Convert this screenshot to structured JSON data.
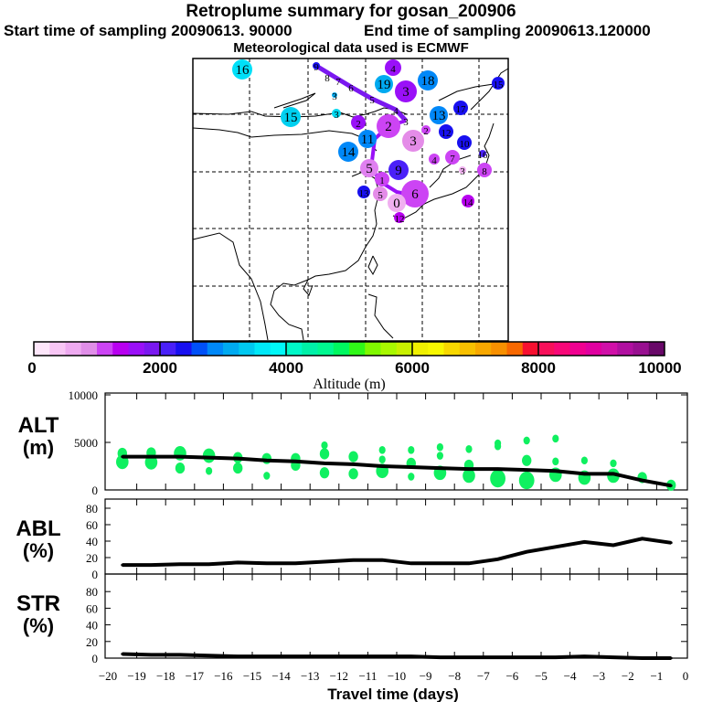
{
  "header": {
    "title": "Retroplume summary for gosan_200906",
    "start_time": "Start time of sampling 20090613. 90000",
    "end_time": "End time of sampling 20090613.120000",
    "met_data": "Meteorological data used is ECMWF"
  },
  "map": {
    "markers": [
      {
        "label": "16",
        "color": "#00e0f8"
      },
      {
        "label": "4",
        "color": "#9a10f8"
      },
      {
        "label": "19",
        "color": "#00aaf0"
      },
      {
        "label": "3",
        "color": "#9a10f8"
      },
      {
        "label": "18",
        "color": "#0088f8"
      },
      {
        "label": "15",
        "color": "#1810f0"
      },
      {
        "label": "15",
        "color": "#00d0f0"
      },
      {
        "label": "3",
        "color": "#00d8f0"
      },
      {
        "label": "13",
        "color": "#0088f8"
      },
      {
        "label": "17",
        "color": "#1810f0"
      },
      {
        "label": "2",
        "color": "#9a10f8"
      },
      {
        "label": "2",
        "color": "#cc44f4"
      },
      {
        "label": "11",
        "color": "#0088f8"
      },
      {
        "label": "3",
        "color": "#e48ce8"
      },
      {
        "label": "2",
        "color": "#cc44f4"
      },
      {
        "label": "12",
        "color": "#1810f0"
      },
      {
        "label": "10",
        "color": "#1810f0"
      },
      {
        "label": "14",
        "color": "#0088f8"
      },
      {
        "label": "4",
        "color": "#cc44f4"
      },
      {
        "label": "7",
        "color": "#cc44f4"
      },
      {
        "label": "16",
        "color": "#4a20f8"
      },
      {
        "label": "3",
        "color": "#f0b0f0"
      },
      {
        "label": "8",
        "color": "#cc44f4"
      },
      {
        "label": "5",
        "color": "#e080f0"
      },
      {
        "label": "1",
        "color": "#cc44f4"
      },
      {
        "label": "9",
        "color": "#4a20f8"
      },
      {
        "label": "13",
        "color": "#1810f0"
      },
      {
        "label": "5",
        "color": "#e48ce8"
      },
      {
        "label": "6",
        "color": "#cc44f4"
      },
      {
        "label": "0",
        "color": "#f0b0f0"
      },
      {
        "label": "12",
        "color": "#b800f0"
      },
      {
        "label": "14",
        "color": "#b800f0"
      },
      {
        "label": "9",
        "color": "#1810f0"
      },
      {
        "label": "8",
        "color": "none"
      },
      {
        "label": "7",
        "color": "none"
      },
      {
        "label": "6",
        "color": "none"
      },
      {
        "label": "3",
        "color": "#00aaf0"
      },
      {
        "label": "5",
        "color": "none"
      },
      {
        "label": "4",
        "color": "none"
      },
      {
        "label": "3",
        "color": "none"
      }
    ]
  },
  "colorbar": {
    "label": "Altitude (m)",
    "ticks": [
      "0",
      "2000",
      "4000",
      "6000",
      "8000",
      "10000"
    ],
    "colors": [
      "#fde6fa",
      "#f8c6f5",
      "#eeaaf0",
      "#e08ee8",
      "#cc44f4",
      "#b800f0",
      "#9a10f8",
      "#7a18f0",
      "#4a20f8",
      "#1810f0",
      "#0050f8",
      "#0088f8",
      "#00aaf0",
      "#00c8f0",
      "#00e8f8",
      "#00f8f8",
      "#00f8c8",
      "#00f0a8",
      "#00f890",
      "#00f860",
      "#30f818",
      "#80f800",
      "#a8f800",
      "#c8f000",
      "#f0f000",
      "#f8f800",
      "#f8d800",
      "#f8c000",
      "#f8a800",
      "#f89000",
      "#f86800",
      "#f81030",
      "#f8105a",
      "#f80878",
      "#f00090",
      "#e000a0",
      "#d010a8",
      "#b010a0",
      "#981090",
      "#680868"
    ]
  },
  "chart_data": [
    {
      "type": "line",
      "title": "ALT (m)",
      "ylabel": "ALT (m)",
      "ylim": [
        0,
        10000
      ],
      "yticks": [
        "0",
        "5000",
        "10000"
      ],
      "x": [
        -19.5,
        -18.5,
        -17.5,
        -16.5,
        -15.5,
        -14.5,
        -13.5,
        -12.5,
        -11.5,
        -10.5,
        -9.5,
        -8.5,
        -7.5,
        -6.5,
        -5.5,
        -4.5,
        -3.5,
        -2.5,
        -1.5,
        -0.5
      ],
      "values": [
        3500,
        3500,
        3500,
        3400,
        3300,
        3100,
        3000,
        2800,
        2700,
        2500,
        2400,
        2300,
        2200,
        2200,
        2100,
        2000,
        1700,
        1700,
        1000,
        450
      ],
      "particles": [
        [
          -19.5,
          3850,
          2
        ],
        [
          -19.5,
          2950,
          3
        ],
        [
          -18.5,
          3900,
          2
        ],
        [
          -18.5,
          2900,
          3
        ],
        [
          -17.5,
          3850,
          3
        ],
        [
          -17.5,
          2300,
          2
        ],
        [
          -16.5,
          3600,
          3
        ],
        [
          -16.5,
          2000,
          1
        ],
        [
          -15.5,
          3400,
          2
        ],
        [
          -15.5,
          2300,
          2
        ],
        [
          -14.5,
          3300,
          2
        ],
        [
          -14.5,
          1500,
          1
        ],
        [
          -13.5,
          3300,
          2
        ],
        [
          -13.5,
          2600,
          2
        ],
        [
          -12.5,
          4700,
          1
        ],
        [
          -12.5,
          3800,
          2
        ],
        [
          -12.5,
          1800,
          2
        ],
        [
          -11.5,
          3500,
          2
        ],
        [
          -11.5,
          1700,
          2
        ],
        [
          -10.5,
          4200,
          1
        ],
        [
          -10.5,
          3200,
          1
        ],
        [
          -10.5,
          2000,
          3
        ],
        [
          -9.5,
          4200,
          1
        ],
        [
          -9.5,
          2800,
          2
        ],
        [
          -9.5,
          1400,
          1
        ],
        [
          -8.5,
          4500,
          1
        ],
        [
          -8.5,
          3600,
          1
        ],
        [
          -8.5,
          1800,
          3
        ],
        [
          -7.5,
          4300,
          1
        ],
        [
          -7.5,
          2600,
          2
        ],
        [
          -7.5,
          1500,
          3
        ],
        [
          -6.5,
          4900,
          1
        ],
        [
          -6.5,
          4600,
          1
        ],
        [
          -6.5,
          1200,
          4
        ],
        [
          -5.5,
          5200,
          1
        ],
        [
          -5.5,
          3100,
          2
        ],
        [
          -5.5,
          1000,
          4
        ],
        [
          -4.5,
          5400,
          1
        ],
        [
          -4.5,
          3000,
          1
        ],
        [
          -4.5,
          1600,
          3
        ],
        [
          -3.5,
          3100,
          1
        ],
        [
          -3.5,
          1300,
          3
        ],
        [
          -2.5,
          2800,
          1
        ],
        [
          -2.5,
          1500,
          3
        ],
        [
          -1.5,
          1300,
          2
        ],
        [
          -0.5,
          500,
          2
        ]
      ]
    },
    {
      "type": "line",
      "ylabel": "ABL (%)",
      "ylim": [
        0,
        100
      ],
      "yticks": [
        "0",
        "20",
        "40",
        "60",
        "80"
      ],
      "x": [
        -19.5,
        -18.5,
        -17.5,
        -16.5,
        -15.5,
        -14.5,
        -13.5,
        -12.5,
        -11.5,
        -10.5,
        -9.5,
        -8.5,
        -7.5,
        -6.5,
        -5.5,
        -4.5,
        -3.5,
        -2.5,
        -1.5,
        -0.5
      ],
      "values": [
        11,
        11,
        12,
        12,
        14,
        13,
        13,
        15,
        17,
        17,
        13,
        13,
        13,
        18,
        27,
        33,
        39,
        35,
        43,
        38
      ]
    },
    {
      "type": "line",
      "xlabel": "Travel time (days)",
      "ylabel": "STR (%)",
      "ylim": [
        0,
        100
      ],
      "xlim": [
        -20,
        0
      ],
      "yticks": [
        "0",
        "20",
        "40",
        "60",
        "80"
      ],
      "xticks": [
        "-20",
        "-19",
        "-18",
        "-17",
        "-16",
        "-15",
        "-14",
        "-13",
        "-12",
        "-11",
        "-10",
        "-9",
        "-8",
        "-7",
        "-6",
        "-5",
        "-4",
        "-3",
        "-2",
        "-1",
        "0"
      ],
      "x": [
        -19.5,
        -18.5,
        -17.5,
        -16.5,
        -15.5,
        -14.5,
        -13.5,
        -12.5,
        -11.5,
        -10.5,
        -9.5,
        -8.5,
        -7.5,
        -6.5,
        -5.5,
        -4.5,
        -3.5,
        -2.5,
        -1.5,
        -0.5
      ],
      "values": [
        5,
        4,
        4,
        3,
        2,
        2,
        2,
        2,
        2,
        2,
        2,
        1,
        1,
        1,
        1,
        1,
        2,
        1,
        0,
        0
      ]
    }
  ]
}
